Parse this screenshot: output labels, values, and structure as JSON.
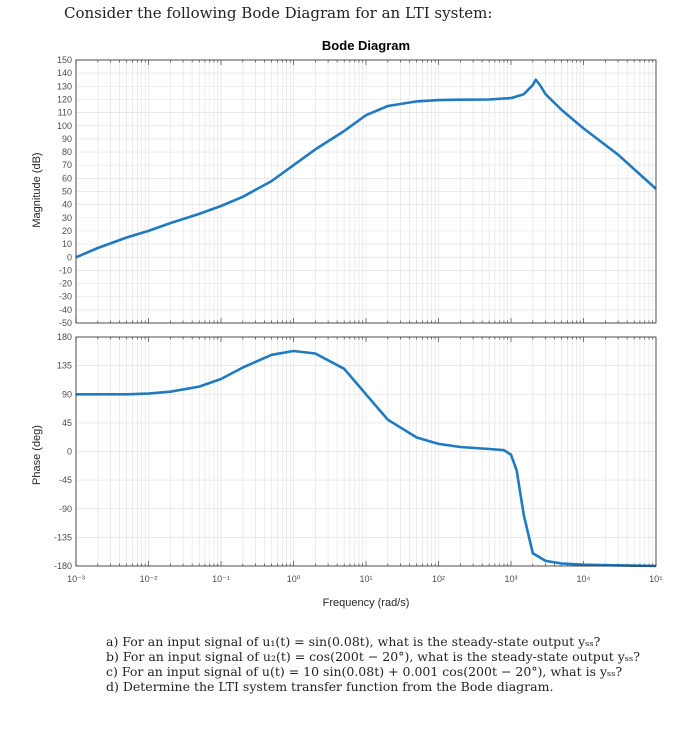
{
  "intro": "Consider the following Bode Diagram for an LTI system:",
  "questions": [
    "a)  For an input signal of u₁(t) = sin(0.08t), what is the steady-state output yₛₛ?",
    "b)  For an input signal of u₂(t) = cos(200t − 20°), what is the steady-state output yₛₛ?",
    "c)  For an input signal of u(t) = 10 sin(0.08t) + 0.001 cos(200t − 20°), what is yₛₛ?",
    "d)  Determine the LTI system transfer function from the Bode diagram."
  ],
  "chart_data": [
    {
      "type": "line",
      "title": "Bode Diagram",
      "ylabel": "Magnitude (dB)",
      "xscale": "log",
      "xlim": [
        0.001,
        100000
      ],
      "ylim": [
        -50,
        150
      ],
      "yticks": [
        150,
        140,
        130,
        120,
        110,
        100,
        90,
        80,
        70,
        60,
        50,
        40,
        30,
        20,
        10,
        0,
        -10,
        -20,
        -30,
        -40,
        -50
      ],
      "grid": true,
      "series": [
        {
          "x": [
            0.001,
            0.002,
            0.005,
            0.01,
            0.02,
            0.05,
            0.1,
            0.2,
            0.5,
            1,
            2,
            5,
            10,
            20,
            50,
            100,
            200,
            500,
            1000,
            1500,
            2000,
            2200,
            2500,
            3000,
            5000,
            10000,
            30000,
            100000
          ],
          "y": [
            0,
            7,
            15,
            20,
            26,
            33,
            39,
            46,
            58,
            70,
            82,
            96,
            108,
            115,
            118.5,
            119.5,
            119.8,
            120,
            121,
            124,
            131,
            135,
            131,
            124,
            112,
            98,
            78,
            52
          ]
        }
      ]
    },
    {
      "type": "line",
      "ylabel": "Phase (deg)",
      "xlabel": "Frequency (rad/s)",
      "xscale": "log",
      "xlim": [
        0.001,
        100000
      ],
      "ylim": [
        -180,
        180
      ],
      "yticks": [
        180,
        135,
        90,
        45,
        0,
        -45,
        -90,
        -135,
        -180
      ],
      "xticks": [
        "10⁻³",
        "10⁻²",
        "10⁻¹",
        "10⁰",
        "10¹",
        "10²",
        "10³",
        "10⁴",
        "10⁵"
      ],
      "grid": true,
      "series": [
        {
          "x": [
            0.001,
            0.005,
            0.01,
            0.02,
            0.05,
            0.1,
            0.2,
            0.5,
            1,
            2,
            5,
            10,
            20,
            50,
            100,
            200,
            500,
            800,
            1000,
            1200,
            1500,
            2000,
            3000,
            5000,
            10000,
            100000
          ],
          "y": [
            90,
            90,
            91,
            94,
            102,
            114,
            132,
            152,
            158,
            154,
            130,
            90,
            50,
            22,
            12,
            7,
            4,
            2,
            -5,
            -30,
            -100,
            -160,
            -172,
            -176,
            -178,
            -180
          ]
        }
      ]
    }
  ]
}
